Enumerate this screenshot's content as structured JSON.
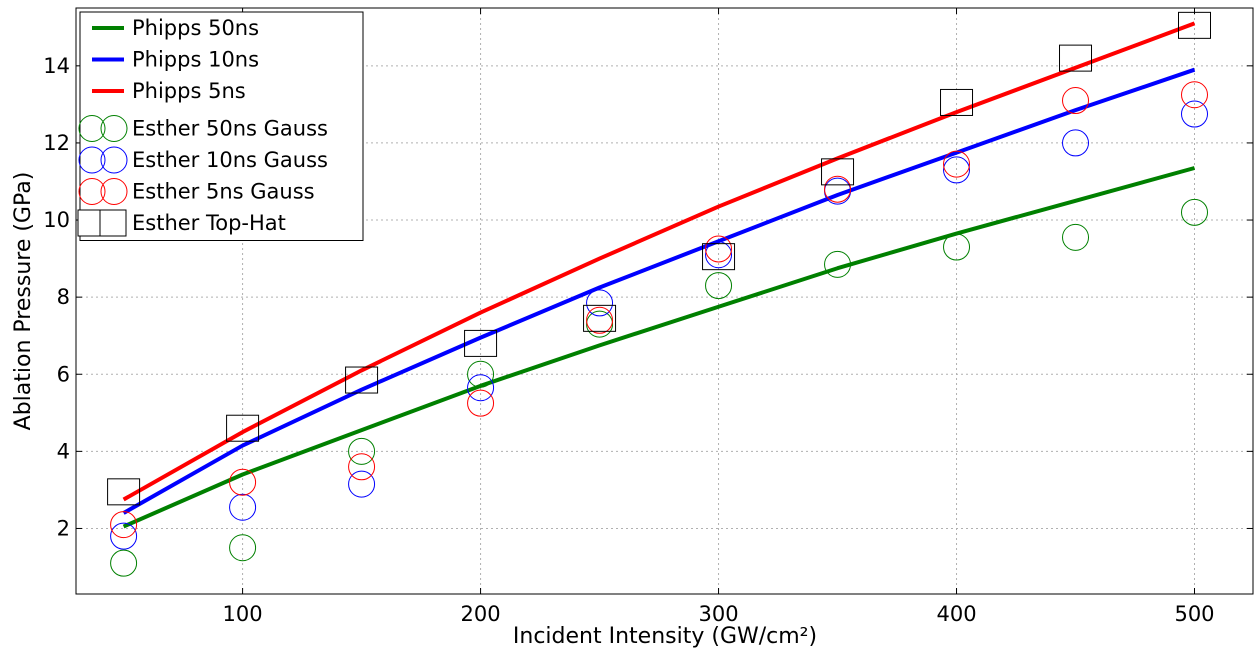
{
  "chart_data": {
    "type": "line",
    "title": "",
    "xlabel": "Incident Intensity (GW/cm²)",
    "ylabel": "Ablation Pressure (GPa)",
    "xlim": [
      30,
      525
    ],
    "ylim": [
      0.3,
      15.5
    ],
    "x_ticks": [
      100,
      200,
      300,
      400,
      500
    ],
    "y_ticks": [
      2,
      4,
      6,
      8,
      10,
      12,
      14
    ],
    "grid": true,
    "legend_position": "top-left",
    "line_series": [
      {
        "name": "Phipps 50ns",
        "color": "#008000",
        "x": [
          50,
          100,
          150,
          200,
          250,
          300,
          350,
          400,
          450,
          500
        ],
        "y": [
          2.05,
          3.4,
          4.55,
          5.7,
          6.75,
          7.75,
          8.75,
          9.65,
          10.5,
          11.35
        ]
      },
      {
        "name": "Phipps 10ns",
        "color": "#0000ff",
        "x": [
          50,
          100,
          150,
          200,
          250,
          300,
          350,
          400,
          450,
          500
        ],
        "y": [
          2.4,
          4.15,
          5.6,
          6.95,
          8.25,
          9.45,
          10.65,
          11.75,
          12.85,
          13.9
        ]
      },
      {
        "name": "Phipps 5ns",
        "color": "#ff0000",
        "x": [
          50,
          100,
          150,
          200,
          250,
          300,
          350,
          400,
          450,
          500
        ],
        "y": [
          2.75,
          4.5,
          6.1,
          7.6,
          9.0,
          10.35,
          11.6,
          12.8,
          13.95,
          15.1
        ]
      }
    ],
    "scatter_series": [
      {
        "name": "Esther 50ns Gauss",
        "color": "#008000",
        "marker": "circle",
        "x": [
          50,
          100,
          150,
          200,
          250,
          300,
          350,
          400,
          450,
          500
        ],
        "y": [
          1.1,
          1.5,
          4.0,
          6.0,
          7.3,
          8.3,
          8.85,
          9.3,
          9.55,
          10.2
        ]
      },
      {
        "name": "Esther 10ns Gauss",
        "color": "#0000ff",
        "marker": "circle",
        "x": [
          50,
          100,
          150,
          200,
          250,
          300,
          350,
          400,
          450,
          500
        ],
        "y": [
          1.8,
          2.55,
          3.15,
          5.65,
          7.85,
          9.1,
          10.75,
          11.3,
          12.0,
          12.75
        ]
      },
      {
        "name": "Esther 5ns Gauss",
        "color": "#ff0000",
        "marker": "circle",
        "x": [
          50,
          100,
          150,
          200,
          250,
          300,
          350,
          400,
          450,
          500
        ],
        "y": [
          2.1,
          3.2,
          3.6,
          5.25,
          7.4,
          9.25,
          10.8,
          11.45,
          13.1,
          13.25
        ]
      },
      {
        "name": "Esther Top-Hat",
        "color": "#000000",
        "marker": "square",
        "x": [
          50,
          100,
          150,
          200,
          250,
          300,
          350,
          400,
          450,
          500
        ],
        "y": [
          2.95,
          4.6,
          5.85,
          6.8,
          7.45,
          9.05,
          11.25,
          13.05,
          14.2,
          15.05
        ]
      }
    ]
  }
}
